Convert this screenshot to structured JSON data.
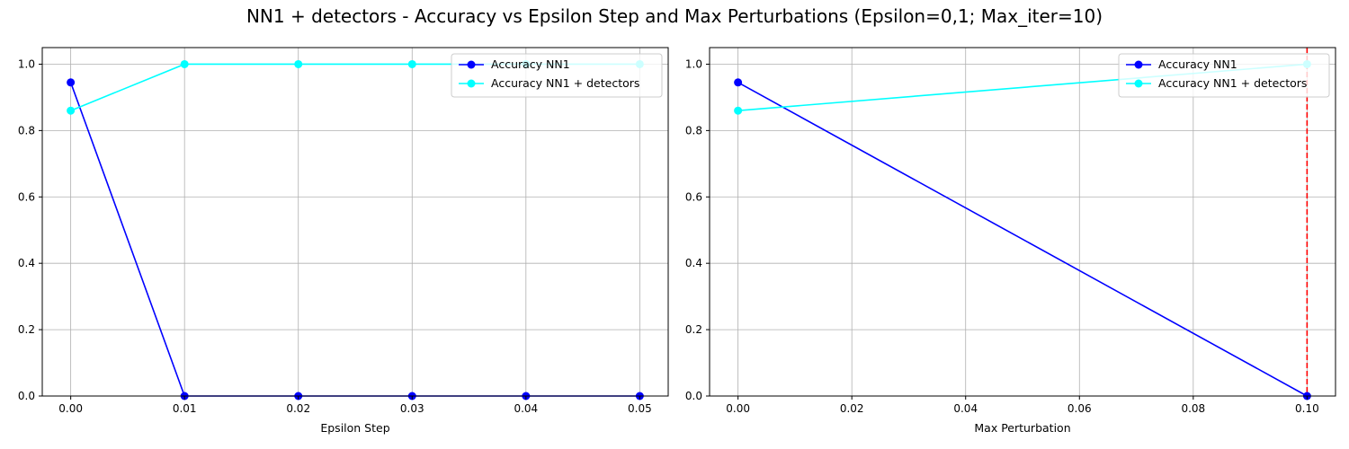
{
  "figure": {
    "title": "NN1 + detectors - Accuracy vs Epsilon Step and Max Perturbations (Epsilon=0,1; Max_iter=10)"
  },
  "chart_data": [
    {
      "type": "line",
      "xlabel": "Epsilon Step",
      "ylabel": "",
      "x": [
        0.0,
        0.01,
        0.02,
        0.03,
        0.04,
        0.05
      ],
      "xlim": [
        -0.0025,
        0.0525
      ],
      "ylim": [
        0,
        1.05
      ],
      "xticks": [
        "0.00",
        "0.01",
        "0.02",
        "0.03",
        "0.04",
        "0.05"
      ],
      "xtick_values": [
        0.0,
        0.01,
        0.02,
        0.03,
        0.04,
        0.05
      ],
      "yticks": [
        "0.0",
        "0.2",
        "0.4",
        "0.6",
        "0.8",
        "1.0"
      ],
      "ytick_values": [
        0.0,
        0.2,
        0.4,
        0.6,
        0.8,
        1.0
      ],
      "grid": true,
      "legend": "top-right",
      "series": [
        {
          "name": "Accuracy NN1",
          "color": "#0000ff",
          "values": [
            0.945,
            0.0,
            0.0,
            0.0,
            0.0,
            0.0
          ]
        },
        {
          "name": "Accuracy NN1 + detectors",
          "color": "#00ffff",
          "values": [
            0.86,
            1.0,
            1.0,
            1.0,
            1.0,
            1.0
          ]
        }
      ]
    },
    {
      "type": "line",
      "xlabel": "Max Perturbation",
      "ylabel": "",
      "x": [
        0.0,
        0.1
      ],
      "xlim": [
        -0.005,
        0.105
      ],
      "ylim": [
        0,
        1.05
      ],
      "xticks": [
        "0.00",
        "0.02",
        "0.04",
        "0.06",
        "0.08",
        "0.10"
      ],
      "xtick_values": [
        0.0,
        0.02,
        0.04,
        0.06,
        0.08,
        0.1
      ],
      "yticks": [
        "0.0",
        "0.2",
        "0.4",
        "0.6",
        "0.8",
        "1.0"
      ],
      "ytick_values": [
        0.0,
        0.2,
        0.4,
        0.6,
        0.8,
        1.0
      ],
      "grid": true,
      "legend": "top-right",
      "vline": {
        "x": 0.1,
        "color": "#ff0000",
        "style": "dashed"
      },
      "series": [
        {
          "name": "Accuracy NN1",
          "color": "#0000ff",
          "values": [
            0.945,
            0.0
          ]
        },
        {
          "name": "Accuracy NN1 + detectors",
          "color": "#00ffff",
          "values": [
            0.86,
            1.0
          ]
        }
      ]
    }
  ]
}
